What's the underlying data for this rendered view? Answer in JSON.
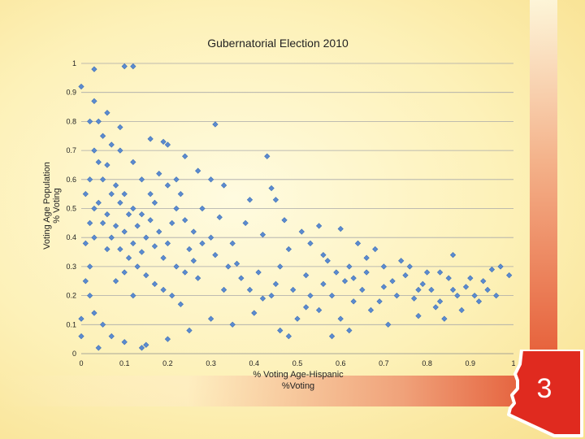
{
  "slide": {
    "badge_number": "3",
    "colors": {
      "marker_fill": "#5b8bcf",
      "marker_stroke": "#3f6fb6",
      "badge_fill": "#e02a1f",
      "ribbon": "#e6603a"
    }
  },
  "chart_data": {
    "type": "scatter",
    "title": "Gubernatorial Election 2010",
    "xlabel": "% Voting Age-Hispanic",
    "xlabel_line2": "%Voting",
    "ylabel": "Voting Age Population",
    "ylabel_line2": "% Voting",
    "xlim": [
      0,
      1
    ],
    "ylim": [
      0,
      1
    ],
    "xticks": [
      "0",
      "0.1",
      "0.2",
      "0.3",
      "0.4",
      "0.5",
      "0.6",
      "0.7",
      "0.8",
      "0.9",
      "1"
    ],
    "yticks": [
      "0",
      "0.1",
      "0.2",
      "0.3",
      "0.4",
      "0.5",
      "0.6",
      "0.7",
      "0.8",
      "0.9",
      "1"
    ],
    "grid": true,
    "marker": "diamond",
    "series": [
      {
        "name": "Precincts",
        "points": [
          [
            0.1,
            0.99
          ],
          [
            0.12,
            0.99
          ],
          [
            0.03,
            0.98
          ],
          [
            0.0,
            0.92
          ],
          [
            0.03,
            0.87
          ],
          [
            0.06,
            0.83
          ],
          [
            0.02,
            0.8
          ],
          [
            0.04,
            0.8
          ],
          [
            0.09,
            0.78
          ],
          [
            0.31,
            0.79
          ],
          [
            0.43,
            0.68
          ],
          [
            0.2,
            0.72
          ],
          [
            0.16,
            0.74
          ],
          [
            0.19,
            0.73
          ],
          [
            0.24,
            0.68
          ],
          [
            0.22,
            0.6
          ],
          [
            0.3,
            0.6
          ],
          [
            0.27,
            0.63
          ],
          [
            0.33,
            0.58
          ],
          [
            0.44,
            0.57
          ],
          [
            0.39,
            0.53
          ],
          [
            0.45,
            0.53
          ],
          [
            0.47,
            0.46
          ],
          [
            0.55,
            0.44
          ],
          [
            0.6,
            0.43
          ],
          [
            0.51,
            0.42
          ],
          [
            0.64,
            0.38
          ],
          [
            0.68,
            0.36
          ],
          [
            0.66,
            0.33
          ],
          [
            0.74,
            0.32
          ],
          [
            0.76,
            0.3
          ],
          [
            0.83,
            0.28
          ],
          [
            0.9,
            0.26
          ],
          [
            0.97,
            0.3
          ],
          [
            0.94,
            0.22
          ],
          [
            0.92,
            0.18
          ],
          [
            0.85,
            0.26
          ],
          [
            0.8,
            0.28
          ],
          [
            0.7,
            0.23
          ],
          [
            0.63,
            0.18
          ],
          [
            0.58,
            0.2
          ],
          [
            0.55,
            0.15
          ],
          [
            0.5,
            0.12
          ],
          [
            0.46,
            0.08
          ],
          [
            0.48,
            0.06
          ],
          [
            0.58,
            0.06
          ],
          [
            0.62,
            0.08
          ],
          [
            0.71,
            0.1
          ],
          [
            0.78,
            0.13
          ],
          [
            0.82,
            0.16
          ],
          [
            0.87,
            0.2
          ],
          [
            0.89,
            0.23
          ],
          [
            0.96,
            0.2
          ],
          [
            0.99,
            0.27
          ],
          [
            0.86,
            0.34
          ],
          [
            0.95,
            0.29
          ],
          [
            0.79,
            0.24
          ],
          [
            0.73,
            0.2
          ],
          [
            0.67,
            0.15
          ],
          [
            0.6,
            0.12
          ],
          [
            0.52,
            0.16
          ],
          [
            0.44,
            0.2
          ],
          [
            0.4,
            0.14
          ],
          [
            0.35,
            0.1
          ],
          [
            0.3,
            0.12
          ],
          [
            0.25,
            0.08
          ],
          [
            0.2,
            0.05
          ],
          [
            0.15,
            0.03
          ],
          [
            0.14,
            0.02
          ],
          [
            0.1,
            0.04
          ],
          [
            0.07,
            0.06
          ],
          [
            0.05,
            0.1
          ],
          [
            0.03,
            0.14
          ],
          [
            0.02,
            0.2
          ],
          [
            0.01,
            0.25
          ],
          [
            0.04,
            0.02
          ],
          [
            0.0,
            0.06
          ],
          [
            0.0,
            0.12
          ],
          [
            0.02,
            0.3
          ],
          [
            0.27,
            0.26
          ],
          [
            0.33,
            0.22
          ],
          [
            0.36,
            0.31
          ],
          [
            0.41,
            0.28
          ],
          [
            0.46,
            0.3
          ],
          [
            0.52,
            0.27
          ],
          [
            0.57,
            0.32
          ],
          [
            0.61,
            0.25
          ],
          [
            0.65,
            0.22
          ],
          [
            0.69,
            0.18
          ],
          [
            0.72,
            0.25
          ],
          [
            0.77,
            0.19
          ],
          [
            0.81,
            0.22
          ],
          [
            0.84,
            0.12
          ],
          [
            0.88,
            0.15
          ],
          [
            0.93,
            0.25
          ],
          [
            0.25,
            0.36
          ],
          [
            0.3,
            0.4
          ],
          [
            0.35,
            0.38
          ],
          [
            0.38,
            0.45
          ],
          [
            0.42,
            0.41
          ],
          [
            0.48,
            0.36
          ],
          [
            0.53,
            0.38
          ],
          [
            0.56,
            0.34
          ],
          [
            0.62,
            0.3
          ],
          [
            0.28,
            0.5
          ],
          [
            0.32,
            0.47
          ],
          [
            0.21,
            0.45
          ],
          [
            0.23,
            0.55
          ],
          [
            0.17,
            0.52
          ],
          [
            0.14,
            0.6
          ],
          [
            0.12,
            0.66
          ],
          [
            0.09,
            0.7
          ],
          [
            0.07,
            0.72
          ],
          [
            0.05,
            0.75
          ],
          [
            0.06,
            0.65
          ],
          [
            0.08,
            0.58
          ],
          [
            0.1,
            0.55
          ],
          [
            0.11,
            0.48
          ],
          [
            0.13,
            0.44
          ],
          [
            0.15,
            0.4
          ],
          [
            0.17,
            0.37
          ],
          [
            0.19,
            0.33
          ],
          [
            0.22,
            0.3
          ],
          [
            0.24,
            0.28
          ],
          [
            0.26,
            0.32
          ],
          [
            0.2,
            0.38
          ],
          [
            0.18,
            0.42
          ],
          [
            0.16,
            0.46
          ],
          [
            0.12,
            0.5
          ],
          [
            0.09,
            0.52
          ],
          [
            0.07,
            0.55
          ],
          [
            0.05,
            0.6
          ],
          [
            0.04,
            0.66
          ],
          [
            0.03,
            0.7
          ],
          [
            0.02,
            0.6
          ],
          [
            0.01,
            0.55
          ],
          [
            0.03,
            0.5
          ],
          [
            0.05,
            0.45
          ],
          [
            0.07,
            0.4
          ],
          [
            0.09,
            0.36
          ],
          [
            0.11,
            0.33
          ],
          [
            0.13,
            0.3
          ],
          [
            0.15,
            0.27
          ],
          [
            0.17,
            0.24
          ],
          [
            0.19,
            0.22
          ],
          [
            0.21,
            0.2
          ],
          [
            0.23,
            0.17
          ],
          [
            0.12,
            0.2
          ],
          [
            0.08,
            0.25
          ],
          [
            0.1,
            0.28
          ],
          [
            0.14,
            0.35
          ],
          [
            0.06,
            0.48
          ],
          [
            0.04,
            0.52
          ],
          [
            0.02,
            0.45
          ],
          [
            0.01,
            0.38
          ],
          [
            0.03,
            0.4
          ],
          [
            0.06,
            0.36
          ],
          [
            0.08,
            0.44
          ],
          [
            0.1,
            0.42
          ],
          [
            0.12,
            0.38
          ],
          [
            0.14,
            0.48
          ],
          [
            0.16,
            0.55
          ],
          [
            0.18,
            0.62
          ],
          [
            0.2,
            0.58
          ],
          [
            0.22,
            0.5
          ],
          [
            0.24,
            0.46
          ],
          [
            0.26,
            0.42
          ],
          [
            0.28,
            0.38
          ],
          [
            0.31,
            0.34
          ],
          [
            0.34,
            0.3
          ],
          [
            0.37,
            0.26
          ],
          [
            0.39,
            0.22
          ],
          [
            0.42,
            0.19
          ],
          [
            0.45,
            0.24
          ],
          [
            0.49,
            0.22
          ],
          [
            0.53,
            0.2
          ],
          [
            0.56,
            0.24
          ],
          [
            0.59,
            0.28
          ],
          [
            0.63,
            0.26
          ],
          [
            0.66,
            0.28
          ],
          [
            0.7,
            0.3
          ],
          [
            0.75,
            0.27
          ],
          [
            0.78,
            0.22
          ],
          [
            0.83,
            0.18
          ],
          [
            0.86,
            0.22
          ],
          [
            0.91,
            0.2
          ]
        ]
      }
    ]
  }
}
